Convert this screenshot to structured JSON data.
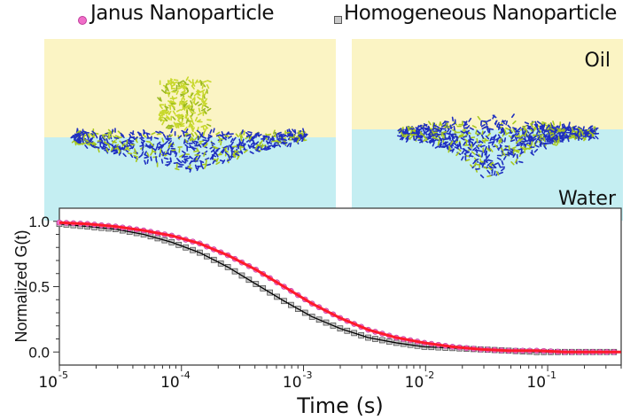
{
  "legend": {
    "janus": "Janus Nanoparticle",
    "homogeneous": "Homogeneous Nanoparticle"
  },
  "panels": {
    "oil_label": "Oil",
    "water_label": "Water"
  },
  "colors": {
    "oil": "#fbf4c4",
    "water": "#c4eef2",
    "arrow": "#4f81bd",
    "janus_marker": "#f06ec8",
    "janus_fit": "#ff1a2a",
    "homog_marker": "#c8c8c8",
    "homog_fit": "#000000"
  },
  "chart_data": {
    "type": "scatter",
    "xlabel": "Time (s)",
    "ylabel": "Normalized G(t)",
    "xscale": "log",
    "xlim": [
      1e-05,
      0.4
    ],
    "ylim": [
      -0.1,
      1.1
    ],
    "xticks": [
      {
        "value": 1e-05,
        "base": "10",
        "exp": "-5"
      },
      {
        "value": 0.0001,
        "base": "10",
        "exp": "-4"
      },
      {
        "value": 0.001,
        "base": "10",
        "exp": "-3"
      },
      {
        "value": 0.01,
        "base": "10",
        "exp": "-2"
      },
      {
        "value": 0.1,
        "base": "10",
        "exp": "-1"
      }
    ],
    "yticks": [
      {
        "value": 0.0,
        "label": "0.0"
      },
      {
        "value": 0.5,
        "label": "0.5"
      },
      {
        "value": 1.0,
        "label": "1.0"
      }
    ],
    "x_log10": [
      -5,
      -4.77,
      -4.54,
      -4.31,
      -4.08,
      -3.85,
      -3.62,
      -3.39,
      -3.16,
      -2.93,
      -2.7,
      -2.47,
      -2.24,
      -2.01,
      -1.78,
      -1.55,
      -1.32,
      -1.09,
      -0.86,
      -0.63,
      -0.4
    ],
    "series": [
      {
        "name": "Janus Nanoparticle",
        "marker": "circle",
        "values": [
          0.99,
          0.98,
          0.96,
          0.93,
          0.89,
          0.83,
          0.74,
          0.63,
          0.5,
          0.37,
          0.26,
          0.17,
          0.11,
          0.07,
          0.04,
          0.02,
          0.01,
          0.01,
          0.0,
          0.0,
          0.0
        ]
      },
      {
        "name": "Homogeneous Nanoparticle",
        "marker": "square",
        "values": [
          0.98,
          0.96,
          0.94,
          0.9,
          0.84,
          0.76,
          0.65,
          0.52,
          0.39,
          0.27,
          0.18,
          0.11,
          0.07,
          0.04,
          0.03,
          0.02,
          0.01,
          0.0,
          0.0,
          0.0,
          0.0
        ]
      }
    ]
  }
}
